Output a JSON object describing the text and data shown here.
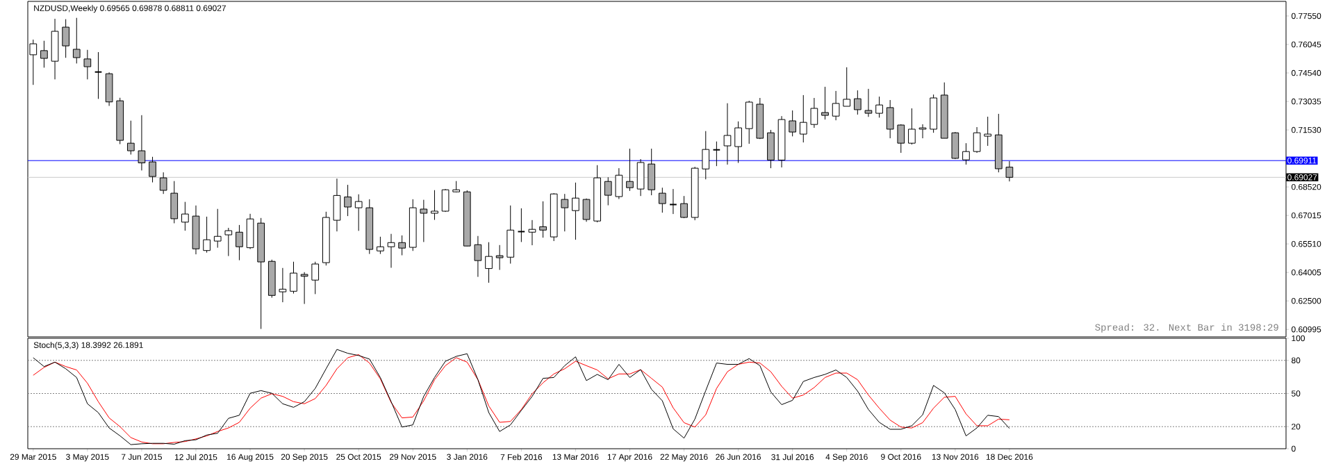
{
  "chart_data": [
    {
      "type": "candlestick",
      "title": "NZDUSD,Weekly  0.69565 0.69878 0.68811 0.69027",
      "categories": [
        null,
        null,
        null,
        null,
        null,
        null,
        null,
        null,
        null,
        null,
        null,
        null,
        null,
        null,
        null,
        null,
        null,
        null,
        null,
        null,
        null,
        null,
        null,
        null,
        null,
        null,
        null,
        null,
        null,
        null,
        null,
        null,
        null,
        null,
        null,
        null,
        null,
        null,
        null,
        null,
        null,
        null,
        null,
        null,
        null,
        null,
        null,
        null,
        null,
        null,
        null,
        null,
        null,
        null,
        null,
        null,
        null,
        null,
        null,
        null,
        null,
        null,
        null,
        null,
        null,
        null,
        null,
        null,
        null,
        null,
        null,
        null,
        null,
        null,
        null,
        null,
        null,
        null,
        null,
        null,
        null,
        null,
        null,
        null,
        null,
        null,
        null,
        null,
        null,
        null,
        null,
        null,
        null,
        null,
        null,
        null,
        null,
        null,
        null,
        null,
        null,
        null,
        null,
        null,
        null,
        null,
        null,
        null,
        null,
        null,
        null,
        null,
        null,
        null,
        null,
        null
      ],
      "ohlc": [
        [
          0.755,
          0.763,
          0.7391,
          0.7608
        ],
        [
          0.7572,
          0.7624,
          0.7482,
          0.7531
        ],
        [
          0.7516,
          0.774,
          0.742,
          0.7674
        ],
        [
          0.7696,
          0.7738,
          0.7534,
          0.7597
        ],
        [
          0.7579,
          0.7745,
          0.7504,
          0.7535
        ],
        [
          0.7528,
          0.7576,
          0.742,
          0.7487
        ],
        [
          0.7459,
          0.7564,
          0.7317,
          0.7459
        ],
        [
          0.745,
          0.7457,
          0.728,
          0.7301
        ],
        [
          0.7307,
          0.7323,
          0.7078,
          0.7098
        ],
        [
          0.7083,
          0.7202,
          0.7023,
          0.7043
        ],
        [
          0.7043,
          0.7231,
          0.6939,
          0.6979
        ],
        [
          0.6984,
          0.7011,
          0.6876,
          0.6907
        ],
        [
          0.69,
          0.6929,
          0.6815,
          0.6834
        ],
        [
          0.6819,
          0.6883,
          0.666,
          0.6684
        ],
        [
          0.6666,
          0.6773,
          0.6621,
          0.6709
        ],
        [
          0.6698,
          0.6754,
          0.6496,
          0.6525
        ],
        [
          0.6516,
          0.6695,
          0.6505,
          0.6573
        ],
        [
          0.6566,
          0.6736,
          0.6531,
          0.6591
        ],
        [
          0.6599,
          0.6636,
          0.6487,
          0.6621
        ],
        [
          0.6613,
          0.6651,
          0.6465,
          0.6536
        ],
        [
          0.6531,
          0.671,
          0.6524,
          0.6683
        ],
        [
          0.6661,
          0.6688,
          0.6102,
          0.6456
        ],
        [
          0.6459,
          0.6468,
          0.6267,
          0.6279
        ],
        [
          0.6298,
          0.6424,
          0.6243,
          0.6312
        ],
        [
          0.6301,
          0.6457,
          0.6289,
          0.6397
        ],
        [
          0.639,
          0.6402,
          0.6234,
          0.638
        ],
        [
          0.636,
          0.6457,
          0.6286,
          0.6445
        ],
        [
          0.6452,
          0.6721,
          0.6437,
          0.6691
        ],
        [
          0.6676,
          0.6896,
          0.6617,
          0.6807
        ],
        [
          0.6799,
          0.6863,
          0.6698,
          0.6746
        ],
        [
          0.6742,
          0.6813,
          0.662,
          0.6775
        ],
        [
          0.6742,
          0.6787,
          0.6498,
          0.6522
        ],
        [
          0.6514,
          0.6589,
          0.6498,
          0.6536
        ],
        [
          0.6536,
          0.6604,
          0.6425,
          0.6558
        ],
        [
          0.6558,
          0.6596,
          0.6491,
          0.6529
        ],
        [
          0.6533,
          0.6787,
          0.6514,
          0.6742
        ],
        [
          0.6735,
          0.6784,
          0.6561,
          0.6713
        ],
        [
          0.6713,
          0.6835,
          0.6678,
          0.6724
        ],
        [
          0.6724,
          0.6841,
          0.672,
          0.6837
        ],
        [
          0.6826,
          0.6883,
          0.6823,
          0.6837
        ],
        [
          0.6826,
          0.6834,
          0.6539,
          0.654
        ],
        [
          0.6547,
          0.6593,
          0.6377,
          0.6463
        ],
        [
          0.6421,
          0.656,
          0.6346,
          0.6485
        ],
        [
          0.6489,
          0.6545,
          0.6414,
          0.6478
        ],
        [
          0.6481,
          0.6754,
          0.6447,
          0.6624
        ],
        [
          0.6616,
          0.6739,
          0.6561,
          0.6616
        ],
        [
          0.6613,
          0.6677,
          0.6544,
          0.6628
        ],
        [
          0.6642,
          0.6776,
          0.6584,
          0.6624
        ],
        [
          0.6588,
          0.6819,
          0.6566,
          0.6815
        ],
        [
          0.6786,
          0.6815,
          0.6617,
          0.6742
        ],
        [
          0.6727,
          0.6875,
          0.6573,
          0.6793
        ],
        [
          0.6786,
          0.6791,
          0.6668,
          0.668
        ],
        [
          0.6672,
          0.6967,
          0.6665,
          0.69
        ],
        [
          0.6881,
          0.6903,
          0.6755,
          0.6808
        ],
        [
          0.6801,
          0.6951,
          0.6788,
          0.6914
        ],
        [
          0.6881,
          0.7054,
          0.6831,
          0.6848
        ],
        [
          0.6841,
          0.6999,
          0.6804,
          0.6981
        ],
        [
          0.6973,
          0.7054,
          0.6808,
          0.6837
        ],
        [
          0.6819,
          0.6848,
          0.6716,
          0.6764
        ],
        [
          0.6759,
          0.6841,
          0.6709,
          0.6759
        ],
        [
          0.6764,
          0.6804,
          0.6687,
          0.6691
        ],
        [
          0.6691,
          0.6958,
          0.6676,
          0.6951
        ],
        [
          0.6947,
          0.7147,
          0.6892,
          0.705
        ],
        [
          0.7048,
          0.7092,
          0.6962,
          0.7048
        ],
        [
          0.7069,
          0.7294,
          0.697,
          0.7124
        ],
        [
          0.7065,
          0.7198,
          0.6979,
          0.7164
        ],
        [
          0.716,
          0.7307,
          0.708,
          0.73
        ],
        [
          0.7289,
          0.7322,
          0.7105,
          0.7109
        ],
        [
          0.7138,
          0.7153,
          0.6951,
          0.6994
        ],
        [
          0.6994,
          0.7226,
          0.6955,
          0.7208
        ],
        [
          0.7201,
          0.7256,
          0.7119,
          0.7142
        ],
        [
          0.7131,
          0.7337,
          0.7087,
          0.7193
        ],
        [
          0.7182,
          0.7322,
          0.7164,
          0.7267
        ],
        [
          0.7245,
          0.7381,
          0.7208,
          0.723
        ],
        [
          0.7226,
          0.7359,
          0.7204,
          0.7293
        ],
        [
          0.7278,
          0.7484,
          0.7278,
          0.7315
        ],
        [
          0.7318,
          0.7362,
          0.7234,
          0.726
        ],
        [
          0.7256,
          0.737,
          0.7222,
          0.7241
        ],
        [
          0.7241,
          0.7329,
          0.7218,
          0.7285
        ],
        [
          0.7271,
          0.7311,
          0.7109,
          0.7157
        ],
        [
          0.7179,
          0.7183,
          0.7032,
          0.7083
        ],
        [
          0.7083,
          0.7267,
          0.7076,
          0.7157
        ],
        [
          0.7157,
          0.7183,
          0.7109,
          0.7164
        ],
        [
          0.7157,
          0.734,
          0.7138,
          0.7322
        ],
        [
          0.7337,
          0.7404,
          0.7109,
          0.7109
        ],
        [
          0.7138,
          0.7142,
          0.6999,
          0.7003
        ],
        [
          0.6995,
          0.7083,
          0.697,
          0.7039
        ],
        [
          0.7039,
          0.7168,
          0.7032,
          0.7138
        ],
        [
          0.712,
          0.7223,
          0.7069,
          0.7131
        ],
        [
          0.7127,
          0.7238,
          0.6929,
          0.6948
        ],
        [
          0.69565,
          0.69878,
          0.68811,
          0.69027
        ],
        null,
        null,
        null,
        null,
        null,
        null,
        null,
        null,
        null,
        null,
        null,
        null,
        null,
        null,
        null,
        null,
        null,
        null,
        null,
        null,
        null,
        null,
        null,
        null,
        null
      ],
      "ylim": [
        0.606,
        0.7832
      ],
      "yticks": [
        {
          "value": 0.7755,
          "label": "0.77550"
        },
        {
          "value": 0.76045,
          "label": "0.76045"
        },
        {
          "value": 0.7454,
          "label": "0.74540"
        },
        {
          "value": 0.73035,
          "label": "0.73035"
        },
        {
          "value": 0.7153,
          "label": "0.71530"
        },
        {
          "value": 0.70025,
          "label": null
        },
        {
          "value": 0.6852,
          "label": "0.68520"
        },
        {
          "value": 0.67015,
          "label": "0.67015"
        },
        {
          "value": 0.6551,
          "label": "0.65510"
        },
        {
          "value": 0.64005,
          "label": "0.64005"
        },
        {
          "value": 0.625,
          "label": "0.62500"
        },
        {
          "value": 0.60995,
          "label": "0.60995"
        }
      ],
      "tick_labels": "y",
      "ref_lines": [
        {
          "axis": "y",
          "value": 0.69911,
          "label": "0.69911",
          "color": "#0000ff"
        },
        {
          "axis": "y",
          "value": 0.69027,
          "label": "0.69027",
          "color": "#c8c8c8"
        }
      ],
      "annotations": [
        "Spread: 32. Next Bar in 3198:29"
      ]
    },
    {
      "type": "line",
      "title": "Stoch(5,3,3) 18.3992 26.1891",
      "categories": [
        "29 Mar 2015",
        null,
        null,
        null,
        null,
        "3 May 2015",
        null,
        null,
        null,
        null,
        "7 Jun 2015",
        null,
        null,
        null,
        null,
        "12 Jul 2015",
        null,
        null,
        null,
        null,
        "16 Aug 2015",
        null,
        null,
        null,
        null,
        "20 Sep 2015",
        null,
        null,
        null,
        null,
        "25 Oct 2015",
        null,
        null,
        null,
        null,
        "29 Nov 2015",
        null,
        null,
        null,
        null,
        "3 Jan 2016",
        null,
        null,
        null,
        null,
        "7 Feb 2016",
        null,
        null,
        null,
        null,
        "13 Mar 2016",
        null,
        null,
        null,
        null,
        "17 Apr 2016",
        null,
        null,
        null,
        null,
        "22 May 2016",
        null,
        null,
        null,
        null,
        "26 Jun 2016",
        null,
        null,
        null,
        null,
        "31 Jul 2016",
        null,
        null,
        null,
        null,
        "4 Sep 2016",
        null,
        null,
        null,
        null,
        "9 Oct 2016",
        null,
        null,
        null,
        null,
        "13 Nov 2016",
        null,
        null,
        null,
        null,
        "18 Dec 2016"
      ],
      "series": [
        {
          "color": "#000000",
          "values": [
            82.4,
            74.4,
            78.4,
            72.4,
            64.5,
            40.7,
            32.7,
            18.8,
            11.7,
            3.7,
            4.5,
            4.9,
            4.9,
            4.1,
            7.3,
            8.1,
            12.4,
            14.0,
            27.5,
            30.3,
            50.2,
            52.6,
            50.2,
            40.7,
            37.5,
            42.6,
            54.6,
            72.4,
            89.9,
            86.4,
            84.4,
            81.2,
            64.5,
            42.6,
            19.6,
            21.6,
            47.4,
            64.5,
            79.2,
            83.6,
            86.0,
            62.5,
            32.7,
            15.6,
            21.6,
            34.7,
            47.4,
            63.7,
            64.5,
            75.2,
            83.2,
            61.7,
            67.3,
            62.5,
            76.4,
            64.5,
            71.6,
            53.8,
            43.4,
            18.0,
            9.6,
            26.8,
            52.6,
            77.6,
            76.4,
            76.4,
            81.6,
            75.2,
            51.4,
            39.9,
            43.8,
            60.9,
            64.5,
            67.3,
            71.3,
            64.5,
            52.2,
            35.5,
            23.9,
            17.6,
            17.6,
            20.8,
            30.7,
            57.3,
            50.6,
            35.5,
            11.6,
            18.8,
            30.3,
            29.1,
            18.4
          ]
        },
        {
          "color": "#ff0000",
          "values": [
            66.5,
            73.6,
            78.4,
            74.4,
            71.3,
            59.3,
            42.6,
            27.9,
            20.0,
            10.1,
            6.1,
            4.5,
            4.5,
            5.7,
            6.5,
            8.9,
            11.6,
            15.6,
            18.8,
            23.9,
            36.7,
            45.8,
            49.8,
            47.4,
            42.6,
            40.7,
            45.4,
            57.3,
            72.4,
            82.4,
            85.2,
            77.6,
            63.3,
            41.8,
            27.9,
            28.7,
            43.4,
            62.5,
            75.2,
            82.4,
            78.4,
            62.5,
            38.7,
            23.9,
            24.7,
            35.5,
            49.8,
            59.7,
            67.7,
            72.4,
            79.2,
            75.2,
            71.3,
            63.3,
            67.7,
            67.7,
            71.6,
            63.7,
            55.8,
            37.0,
            23.6,
            19.6,
            30.7,
            54.6,
            69.7,
            76.4,
            78.4,
            77.6,
            69.7,
            56.5,
            45.8,
            48.6,
            55.4,
            64.5,
            68.5,
            68.5,
            62.5,
            48.6,
            36.7,
            25.9,
            19.6,
            18.8,
            23.6,
            36.7,
            46.6,
            47.4,
            31.5,
            20.8,
            20.8,
            26.8,
            26.2
          ]
        }
      ],
      "ylim": [
        0,
        100
      ],
      "yticks": [
        0,
        20,
        50,
        80,
        100
      ],
      "ref_lines": [
        {
          "axis": "y",
          "value": 20,
          "color": "#808080",
          "line_style": "dashed"
        },
        {
          "axis": "y",
          "value": 50,
          "color": "#808080",
          "line_style": "dashed"
        },
        {
          "axis": "y",
          "value": 80,
          "color": "#808080",
          "line_style": "dashed"
        }
      ]
    }
  ]
}
